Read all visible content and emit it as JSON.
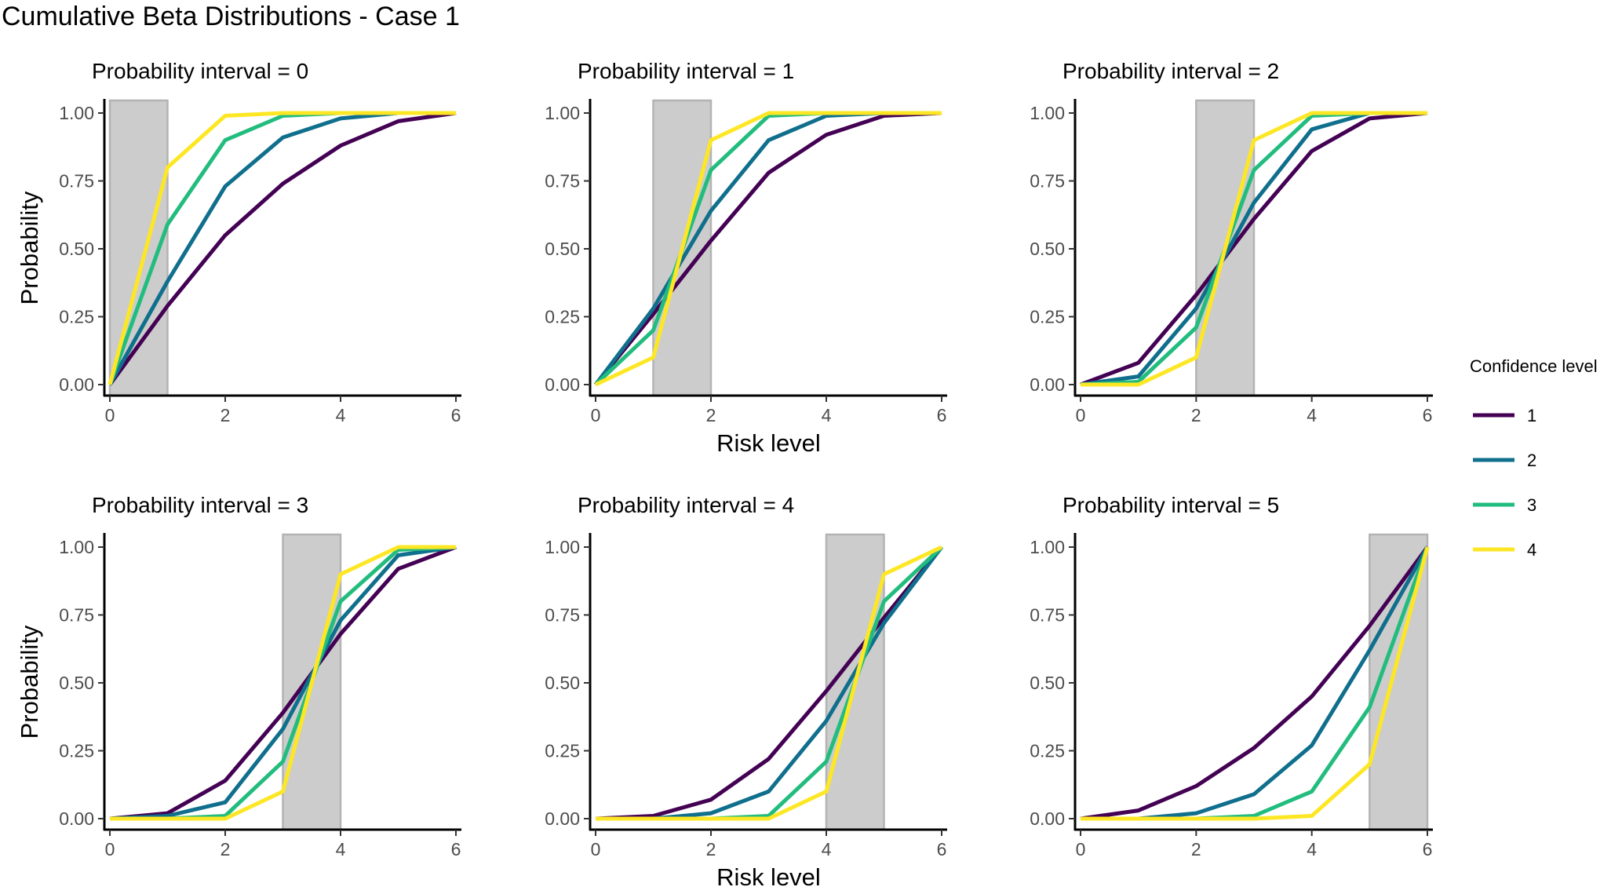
{
  "title": "Cumulative Beta Distributions - Case 1",
  "legend": {
    "title": "Confidence level",
    "placement": "right",
    "items": [
      {
        "label": "1",
        "color": "#440154"
      },
      {
        "label": "2",
        "color": "#0F6F8C"
      },
      {
        "label": "3",
        "color": "#22BD7E"
      },
      {
        "label": "4",
        "color": "#FDE725"
      }
    ]
  },
  "chart_data": [
    {
      "type": "line",
      "title": "Probability interval = 0",
      "xlabel": "",
      "ylabel": "Probability",
      "x": [
        0,
        1,
        2,
        3,
        4,
        5,
        6
      ],
      "xticks": [
        "0",
        "2",
        "4",
        "6"
      ],
      "yticks": [
        "0.00",
        "0.25",
        "0.50",
        "0.75",
        "1.00"
      ],
      "xlim": [
        0,
        6
      ],
      "ylim": [
        0,
        1
      ],
      "shaded_interval": [
        0,
        1
      ],
      "grid": false,
      "series": [
        {
          "name": "1",
          "values": [
            0,
            0.29,
            0.55,
            0.74,
            0.88,
            0.97,
            1.0
          ]
        },
        {
          "name": "2",
          "values": [
            0,
            0.38,
            0.73,
            0.91,
            0.98,
            1.0,
            1.0
          ]
        },
        {
          "name": "3",
          "values": [
            0,
            0.59,
            0.9,
            0.99,
            1.0,
            1.0,
            1.0
          ]
        },
        {
          "name": "4",
          "values": [
            0,
            0.8,
            0.99,
            1.0,
            1.0,
            1.0,
            1.0
          ]
        }
      ]
    },
    {
      "type": "line",
      "title": "Probability interval = 1",
      "xlabel": "Risk level",
      "ylabel": "",
      "x": [
        0,
        1,
        2,
        3,
        4,
        5,
        6
      ],
      "xticks": [
        "0",
        "2",
        "4",
        "6"
      ],
      "yticks": [
        "0.00",
        "0.25",
        "0.50",
        "0.75",
        "1.00"
      ],
      "xlim": [
        0,
        6
      ],
      "ylim": [
        0,
        1
      ],
      "shaded_interval": [
        1,
        2
      ],
      "grid": false,
      "series": [
        {
          "name": "1",
          "values": [
            0,
            0.26,
            0.53,
            0.78,
            0.92,
            0.99,
            1.0
          ]
        },
        {
          "name": "2",
          "values": [
            0,
            0.28,
            0.64,
            0.9,
            0.99,
            1.0,
            1.0
          ]
        },
        {
          "name": "3",
          "values": [
            0,
            0.2,
            0.79,
            0.99,
            1.0,
            1.0,
            1.0
          ]
        },
        {
          "name": "4",
          "values": [
            0,
            0.1,
            0.9,
            1.0,
            1.0,
            1.0,
            1.0
          ]
        }
      ]
    },
    {
      "type": "line",
      "title": "Probability interval = 2",
      "xlabel": "",
      "ylabel": "",
      "x": [
        0,
        1,
        2,
        3,
        4,
        5,
        6
      ],
      "xticks": [
        "0",
        "2",
        "4",
        "6"
      ],
      "yticks": [
        "0.00",
        "0.25",
        "0.50",
        "0.75",
        "1.00"
      ],
      "xlim": [
        0,
        6
      ],
      "ylim": [
        0,
        1
      ],
      "shaded_interval": [
        2,
        3
      ],
      "grid": false,
      "series": [
        {
          "name": "1",
          "values": [
            0,
            0.08,
            0.33,
            0.61,
            0.86,
            0.98,
            1.0
          ]
        },
        {
          "name": "2",
          "values": [
            0,
            0.03,
            0.28,
            0.67,
            0.94,
            1.0,
            1.0
          ]
        },
        {
          "name": "3",
          "values": [
            0,
            0.01,
            0.21,
            0.79,
            0.99,
            1.0,
            1.0
          ]
        },
        {
          "name": "4",
          "values": [
            0,
            0.0,
            0.1,
            0.9,
            1.0,
            1.0,
            1.0
          ]
        }
      ]
    },
    {
      "type": "line",
      "title": "Probability interval = 3",
      "xlabel": "",
      "ylabel": "Probability",
      "x": [
        0,
        1,
        2,
        3,
        4,
        5,
        6
      ],
      "xticks": [
        "0",
        "2",
        "4",
        "6"
      ],
      "yticks": [
        "0.00",
        "0.25",
        "0.50",
        "0.75",
        "1.00"
      ],
      "xlim": [
        0,
        6
      ],
      "ylim": [
        0,
        1
      ],
      "shaded_interval": [
        3,
        4
      ],
      "grid": false,
      "series": [
        {
          "name": "1",
          "values": [
            0,
            0.02,
            0.14,
            0.39,
            0.68,
            0.92,
            1.0
          ]
        },
        {
          "name": "2",
          "values": [
            0,
            0.01,
            0.06,
            0.33,
            0.73,
            0.97,
            1.0
          ]
        },
        {
          "name": "3",
          "values": [
            0,
            0.0,
            0.01,
            0.21,
            0.8,
            0.99,
            1.0
          ]
        },
        {
          "name": "4",
          "values": [
            0,
            0.0,
            0.0,
            0.1,
            0.9,
            1.0,
            1.0
          ]
        }
      ]
    },
    {
      "type": "line",
      "title": "Probability interval = 4",
      "xlabel": "Risk level",
      "ylabel": "",
      "x": [
        0,
        1,
        2,
        3,
        4,
        5,
        6
      ],
      "xticks": [
        "0",
        "2",
        "4",
        "6"
      ],
      "yticks": [
        "0.00",
        "0.25",
        "0.50",
        "0.75",
        "1.00"
      ],
      "xlim": [
        0,
        6
      ],
      "ylim": [
        0,
        1
      ],
      "shaded_interval": [
        4,
        5
      ],
      "grid": false,
      "series": [
        {
          "name": "1",
          "values": [
            0,
            0.01,
            0.07,
            0.22,
            0.47,
            0.74,
            1.0
          ]
        },
        {
          "name": "2",
          "values": [
            0,
            0.0,
            0.02,
            0.1,
            0.36,
            0.72,
            1.0
          ]
        },
        {
          "name": "3",
          "values": [
            0,
            0.0,
            0.0,
            0.01,
            0.21,
            0.8,
            1.0
          ]
        },
        {
          "name": "4",
          "values": [
            0,
            0.0,
            0.0,
            0.0,
            0.1,
            0.9,
            1.0
          ]
        }
      ]
    },
    {
      "type": "line",
      "title": "Probability interval = 5",
      "xlabel": "",
      "ylabel": "",
      "x": [
        0,
        1,
        2,
        3,
        4,
        5,
        6
      ],
      "xticks": [
        "0",
        "2",
        "4",
        "6"
      ],
      "yticks": [
        "0.00",
        "0.25",
        "0.50",
        "0.75",
        "1.00"
      ],
      "xlim": [
        0,
        6
      ],
      "ylim": [
        0,
        1
      ],
      "shaded_interval": [
        5,
        6
      ],
      "grid": false,
      "series": [
        {
          "name": "1",
          "values": [
            0,
            0.03,
            0.12,
            0.26,
            0.45,
            0.71,
            1.0
          ]
        },
        {
          "name": "2",
          "values": [
            0,
            0.0,
            0.02,
            0.09,
            0.27,
            0.62,
            1.0
          ]
        },
        {
          "name": "3",
          "values": [
            0,
            0.0,
            0.0,
            0.01,
            0.1,
            0.41,
            1.0
          ]
        },
        {
          "name": "4",
          "values": [
            0,
            0.0,
            0.0,
            0.0,
            0.01,
            0.2,
            1.0
          ]
        }
      ]
    }
  ]
}
